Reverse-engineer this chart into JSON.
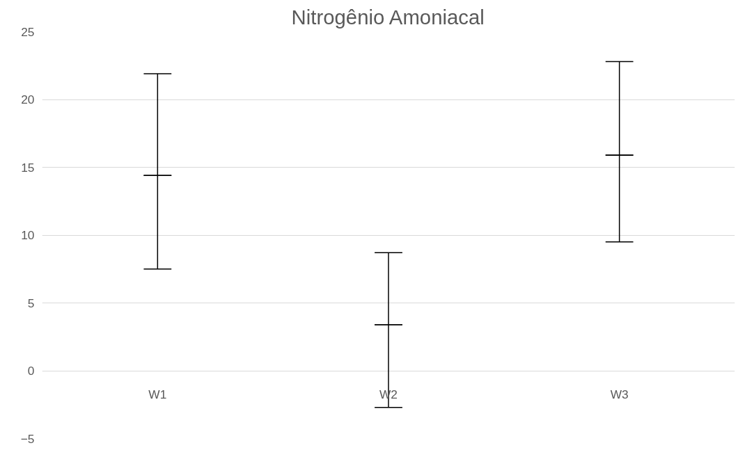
{
  "chart_data": {
    "type": "box",
    "title": "Nitrogênio Amoniacal",
    "categories": [
      "W1",
      "W2",
      "W3"
    ],
    "series": [
      {
        "color": "#000000",
        "boxes": [
          {
            "low": 7.5,
            "q1": 14.4,
            "median": 14.4,
            "q3": 14.4,
            "high": 21.9
          },
          {
            "low": -2.7,
            "q1": 3.4,
            "median": 3.4,
            "q3": 3.4,
            "high": 8.7
          },
          {
            "low": 9.5,
            "q1": 15.9,
            "median": 15.9,
            "q3": 15.9,
            "high": 22.8
          }
        ]
      }
    ],
    "ylim": [
      -5,
      25
    ],
    "yticks": [
      -5,
      0,
      5,
      10,
      15,
      20,
      25
    ],
    "grid": "y"
  }
}
